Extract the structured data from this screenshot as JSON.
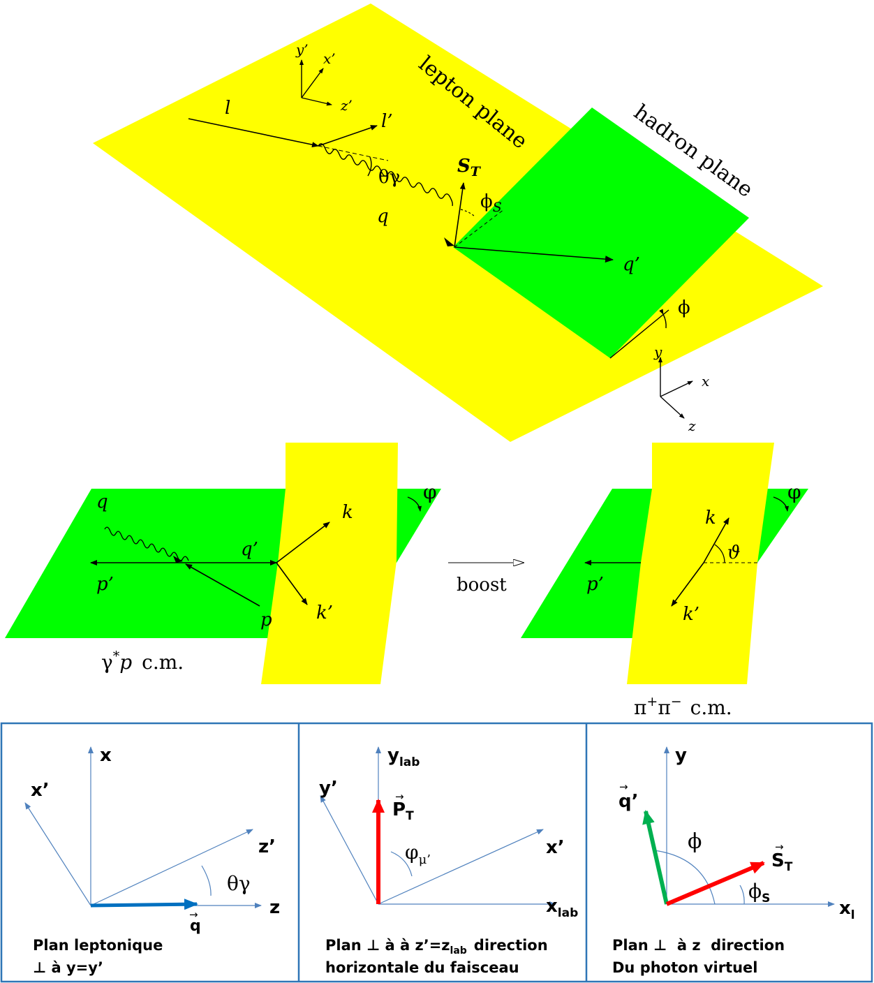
{
  "colors": {
    "yellow": "#ffff00",
    "green": "#00ff00",
    "panel_border": "#2e75b6",
    "axis_blue": "#4f81bd",
    "arrow_blue": "#0070c0",
    "red": "#ff0000",
    "dark_green": "#00b050"
  },
  "top": {
    "lepton_plane": "lepton plane",
    "hadron_plane": "hadron plane",
    "l": "l",
    "l_prime": "l’",
    "q": "q",
    "q_prime": "q’",
    "theta_gamma": "θγ",
    "s_t": "S",
    "s_t_sub": "T",
    "phi_s": "ϕ",
    "phi_s_sub": "S",
    "phi": "ϕ",
    "axes_prime": {
      "x": "x’",
      "y": "y’",
      "z": "z’"
    },
    "axes": {
      "x": "x",
      "y": "y",
      "z": "z"
    }
  },
  "middle": {
    "left": {
      "q": "q",
      "q_prime": "q’",
      "p": "p",
      "p_prime": "p’",
      "k": "k",
      "k_prime": "k’",
      "varphi": "φ",
      "frame": "γ",
      "frame_sup": "*",
      "frame_p": "p",
      "frame_cm": "c.m."
    },
    "boost": "boost",
    "right": {
      "p_prime": "p’",
      "k": "k",
      "k_prime": "k’",
      "varphi": "φ",
      "theta": "ϑ",
      "frame": "π",
      "plus": "+",
      "pi": "π",
      "minus": "−",
      "cm": "c.m."
    }
  },
  "panels": [
    {
      "axes": {
        "x": "x",
        "x_prime": "x’",
        "z_prime": "z’",
        "z": "z"
      },
      "angle": "θγ",
      "vec": "q",
      "caption1": "Plan leptonique",
      "caption2": "⊥ à y=y’"
    },
    {
      "axes": {
        "y": "y",
        "y_sub": "lab",
        "y_prime": "y’",
        "x_prime": "x’",
        "x": "x",
        "x_sub": "lab"
      },
      "vec": "P",
      "vec_sub": "T",
      "angle": "φ",
      "angle_sub": "μ’",
      "caption1_a": "Plan ⊥ à à z’=z",
      "caption1_sub": "lab",
      "caption1_b": "direction",
      "caption2": "horizontale du faisceau"
    },
    {
      "axes": {
        "y": "y",
        "x": "x",
        "x_sub": "l"
      },
      "vec_q": "q’",
      "vec_s": "S",
      "vec_s_sub": "T",
      "angle_phi": "ϕ",
      "angle_phis": "ϕ",
      "angle_phis_sub": "S",
      "caption1": "Plan ⊥  à z  direction",
      "caption2": "Du photon virtuel"
    }
  ]
}
